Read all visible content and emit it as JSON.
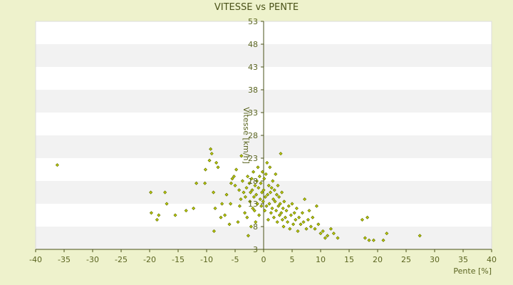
{
  "chart_data": {
    "type": "scatter",
    "title": "VITESSE vs PENTE",
    "xlabel": "Pente [%]",
    "ylabel": "Vitesse [km/h]",
    "xlim": [
      -40,
      40
    ],
    "ylim": [
      3,
      53
    ],
    "x_ticks": [
      "-40",
      "-35",
      "-30",
      "-25",
      "-20",
      "-15",
      "-10",
      "-5",
      "0",
      "5",
      "10",
      "15",
      "20",
      "25",
      "30",
      "35",
      "40"
    ],
    "y_ticks": [
      "53",
      "48",
      "43",
      "38",
      "33",
      "28",
      "23",
      "18",
      "13",
      "8",
      "3"
    ],
    "grid": "horizontal alternating bands",
    "colors": {
      "background": "#eef2cc",
      "band": "#f2f2f2",
      "axis": "#4a5218",
      "marker": "#6b7a00"
    },
    "series": [
      {
        "points": [
          [
            -36.2,
            21.5
          ],
          [
            -19.8,
            15.5
          ],
          [
            -19.7,
            11
          ],
          [
            -18.7,
            9.5
          ],
          [
            -18.4,
            10.5
          ],
          [
            -17.3,
            15.5
          ],
          [
            -17,
            13
          ],
          [
            -15.5,
            10.5
          ],
          [
            -13.6,
            11.5
          ],
          [
            -12.3,
            12
          ],
          [
            -11.8,
            17.5
          ],
          [
            -10.3,
            17.5
          ],
          [
            -10.2,
            20.5
          ],
          [
            -9.5,
            22.5
          ],
          [
            -9.3,
            25
          ],
          [
            -9.1,
            24
          ],
          [
            -8.8,
            15.5
          ],
          [
            -8.7,
            7
          ],
          [
            -8.5,
            12
          ],
          [
            -8.3,
            22
          ],
          [
            -8,
            21
          ],
          [
            -7.5,
            10
          ],
          [
            -7.3,
            13
          ],
          [
            -6.8,
            10.5
          ],
          [
            -6.5,
            15
          ],
          [
            -6,
            8.5
          ],
          [
            -5.8,
            13
          ],
          [
            -5.7,
            17.5
          ],
          [
            -5.5,
            18.5
          ],
          [
            -5.2,
            19
          ],
          [
            -5,
            17
          ],
          [
            -4.8,
            20.5
          ],
          [
            -4.5,
            9
          ],
          [
            -4.3,
            16
          ],
          [
            -4.2,
            12.5
          ],
          [
            -4,
            14
          ],
          [
            -3.9,
            23.5
          ],
          [
            -3.7,
            18
          ],
          [
            -3.5,
            15.5
          ],
          [
            -3.3,
            11
          ],
          [
            -3.2,
            14.5
          ],
          [
            -3,
            16.5
          ],
          [
            -2.9,
            10
          ],
          [
            -2.8,
            19
          ],
          [
            -2.7,
            6
          ],
          [
            -2.5,
            17.5
          ],
          [
            -2.4,
            13.5
          ],
          [
            -2.3,
            15.5
          ],
          [
            -2.2,
            8
          ],
          [
            -2.1,
            18.5
          ],
          [
            -2,
            16
          ],
          [
            -1.9,
            12
          ],
          [
            -1.8,
            20
          ],
          [
            -1.7,
            14.5
          ],
          [
            -1.6,
            11.5
          ],
          [
            -1.5,
            17
          ],
          [
            -1.4,
            9
          ],
          [
            -1.3,
            15
          ],
          [
            -1.2,
            18
          ],
          [
            -1.1,
            13
          ],
          [
            -1,
            21
          ],
          [
            -0.9,
            16.5
          ],
          [
            -0.8,
            10.5
          ],
          [
            -0.7,
            19
          ],
          [
            -0.6,
            14
          ],
          [
            -0.5,
            17.5
          ],
          [
            -0.4,
            12.5
          ],
          [
            -0.3,
            15.5
          ],
          [
            -0.2,
            20
          ],
          [
            -0.1,
            13.5
          ],
          [
            0,
            16
          ],
          [
            0.1,
            18.5
          ],
          [
            0.2,
            11.5
          ],
          [
            0.3,
            14.5
          ],
          [
            0.4,
            19.5
          ],
          [
            0.5,
            12.5
          ],
          [
            0.6,
            22
          ],
          [
            0.7,
            15
          ],
          [
            0.8,
            9.5
          ],
          [
            0.9,
            17
          ],
          [
            1,
            13
          ],
          [
            1.1,
            21
          ],
          [
            1.2,
            15.5
          ],
          [
            1.3,
            11
          ],
          [
            1.4,
            16.5
          ],
          [
            1.5,
            12
          ],
          [
            1.6,
            18
          ],
          [
            1.7,
            14
          ],
          [
            1.8,
            10
          ],
          [
            1.9,
            16
          ],
          [
            2,
            13.5
          ],
          [
            2.1,
            19.5
          ],
          [
            2.2,
            11.5
          ],
          [
            2.3,
            15
          ],
          [
            2.4,
            9
          ],
          [
            2.5,
            17
          ],
          [
            2.6,
            12.5
          ],
          [
            2.7,
            14.5
          ],
          [
            2.8,
            10.5
          ],
          [
            2.9,
            13
          ],
          [
            3,
            24
          ],
          [
            3.1,
            11
          ],
          [
            3.2,
            15.5
          ],
          [
            3.3,
            9.5
          ],
          [
            3.4,
            12
          ],
          [
            3.5,
            8
          ],
          [
            3.6,
            13.5
          ],
          [
            3.8,
            10
          ],
          [
            4,
            11.5
          ],
          [
            4.2,
            9
          ],
          [
            4.4,
            12.5
          ],
          [
            4.6,
            7.5
          ],
          [
            4.8,
            10.5
          ],
          [
            5,
            13
          ],
          [
            5.2,
            8.5
          ],
          [
            5.4,
            11
          ],
          [
            5.6,
            9.5
          ],
          [
            5.8,
            12
          ],
          [
            6,
            7
          ],
          [
            6.2,
            10
          ],
          [
            6.5,
            8.5
          ],
          [
            6.8,
            11
          ],
          [
            7,
            9
          ],
          [
            7.2,
            14
          ],
          [
            7.5,
            7.5
          ],
          [
            7.8,
            9.5
          ],
          [
            8,
            11.5
          ],
          [
            8.3,
            8
          ],
          [
            8.6,
            10
          ],
          [
            9,
            7.5
          ],
          [
            9.3,
            12.5
          ],
          [
            9.6,
            8.5
          ],
          [
            10,
            6.5
          ],
          [
            10.4,
            7
          ],
          [
            10.8,
            5.5
          ],
          [
            11.2,
            6
          ],
          [
            11.8,
            7.5
          ],
          [
            12.3,
            6.5
          ],
          [
            13,
            5.5
          ],
          [
            17.3,
            9.5
          ],
          [
            17.8,
            5.5
          ],
          [
            18.2,
            10
          ],
          [
            18.5,
            5
          ],
          [
            19.3,
            5
          ],
          [
            21,
            5
          ],
          [
            21.6,
            6.5
          ],
          [
            27.4,
            6
          ]
        ]
      }
    ]
  }
}
